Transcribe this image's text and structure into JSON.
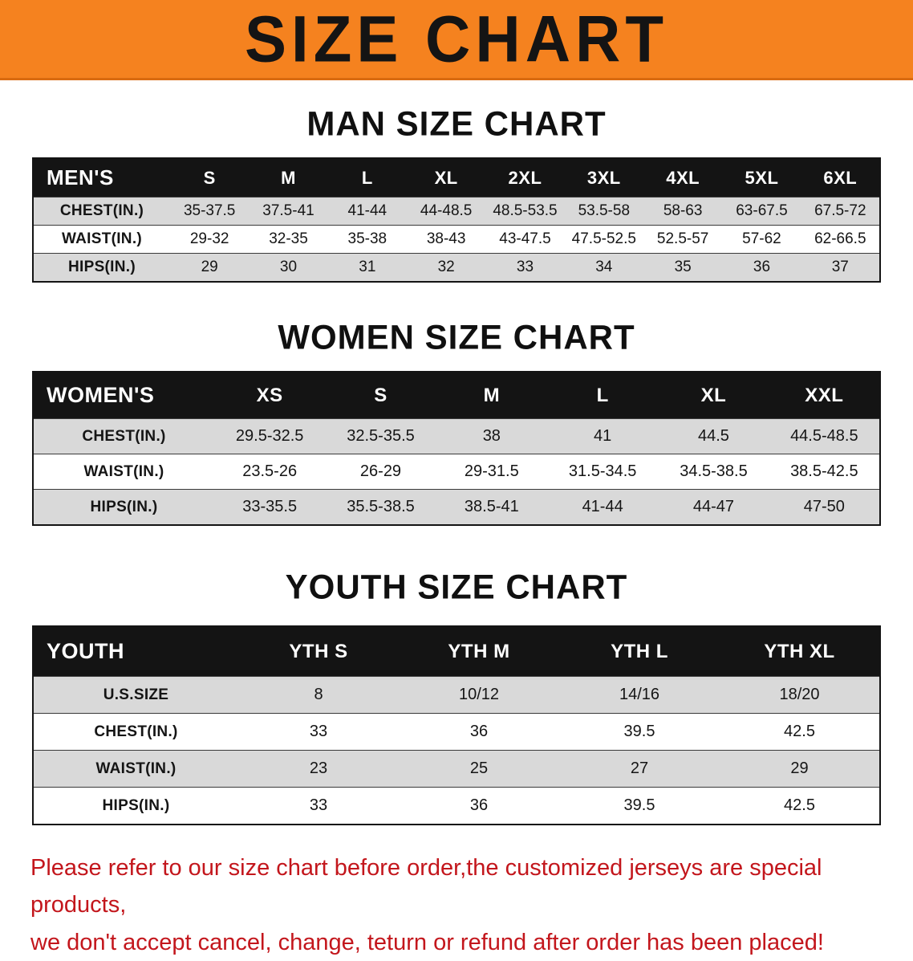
{
  "banner": {
    "title": "SIZE CHART",
    "bg_color": "#f5821f",
    "text_color": "#141414"
  },
  "tables": {
    "men": {
      "heading": "MAN SIZE CHART",
      "header": [
        "MEN'S",
        "S",
        "M",
        "L",
        "XL",
        "2XL",
        "3XL",
        "4XL",
        "5XL",
        "6XL"
      ],
      "rows": [
        [
          "CHEST(IN.)",
          "35-37.5",
          "37.5-41",
          "41-44",
          "44-48.5",
          "48.5-53.5",
          "53.5-58",
          "58-63",
          "63-67.5",
          "67.5-72"
        ],
        [
          "WAIST(IN.)",
          "29-32",
          "32-35",
          "35-38",
          "38-43",
          "43-47.5",
          "47.5-52.5",
          "52.5-57",
          "57-62",
          "62-66.5"
        ],
        [
          "HIPS(IN.)",
          "29",
          "30",
          "31",
          "32",
          "33",
          "34",
          "35",
          "36",
          "37"
        ]
      ]
    },
    "women": {
      "heading": "WOMEN SIZE CHART",
      "header": [
        "WOMEN'S",
        "XS",
        "S",
        "M",
        "L",
        "XL",
        "XXL"
      ],
      "rows": [
        [
          "CHEST(IN.)",
          "29.5-32.5",
          "32.5-35.5",
          "38",
          "41",
          "44.5",
          "44.5-48.5"
        ],
        [
          "WAIST(IN.)",
          "23.5-26",
          "26-29",
          "29-31.5",
          "31.5-34.5",
          "34.5-38.5",
          "38.5-42.5"
        ],
        [
          "HIPS(IN.)",
          "33-35.5",
          "35.5-38.5",
          "38.5-41",
          "41-44",
          "44-47",
          "47-50"
        ]
      ]
    },
    "youth": {
      "heading": "YOUTH SIZE CHART",
      "header": [
        "YOUTH",
        "YTH S",
        "YTH M",
        "YTH L",
        "YTH XL"
      ],
      "rows": [
        [
          "U.S.SIZE",
          "8",
          "10/12",
          "14/16",
          "18/20"
        ],
        [
          "CHEST(IN.)",
          "33",
          "36",
          "39.5",
          "42.5"
        ],
        [
          "WAIST(IN.)",
          "23",
          "25",
          "27",
          "29"
        ],
        [
          "HIPS(IN.)",
          "33",
          "36",
          "39.5",
          "42.5"
        ]
      ]
    }
  },
  "footer": {
    "line1": "Please refer to our size chart before order,the customized jerseys are special products,",
    "line2": "we don't accept cancel, change, teturn or refund after order has been placed!",
    "text_color": "#c3161c"
  }
}
